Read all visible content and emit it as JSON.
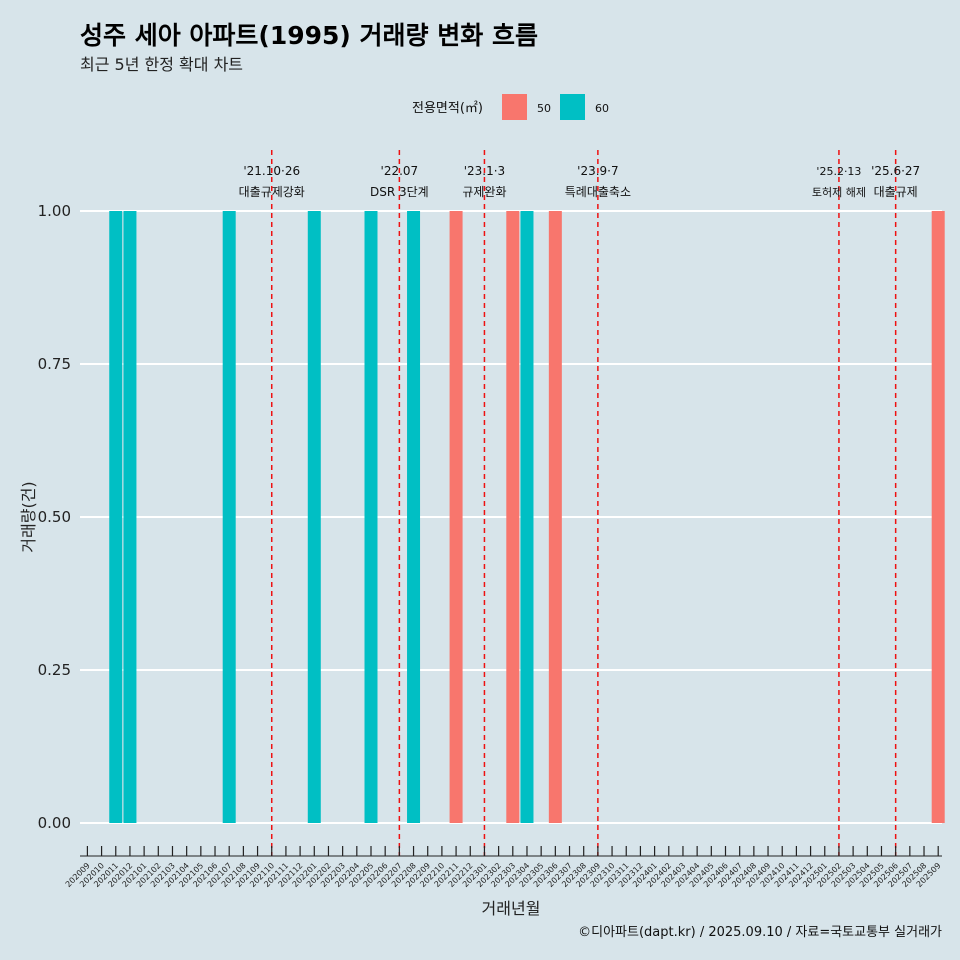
{
  "chart_data": {
    "type": "bar",
    "title": "성주 세아 아파트(1995) 거래량 변화 흐름",
    "subtitle": "최근 5년 한정 확대 차트",
    "xlabel": "거래년월",
    "ylabel": "거래량(건)",
    "ylim": [
      0,
      1
    ],
    "yticks": [
      "0.00",
      "0.25",
      "0.50",
      "0.75",
      "1.00"
    ],
    "grid": true,
    "legend": {
      "title": "전용면적(㎡)",
      "position": "top",
      "entries": [
        {
          "label": "50",
          "color": "#f8766d"
        },
        {
          "label": "60",
          "color": "#00bfc4"
        }
      ]
    },
    "categories": [
      "202009",
      "202010",
      "202011",
      "202012",
      "202101",
      "202102",
      "202103",
      "202104",
      "202105",
      "202106",
      "202107",
      "202108",
      "202109",
      "202110",
      "202111",
      "202112",
      "202201",
      "202202",
      "202203",
      "202204",
      "202205",
      "202206",
      "202207",
      "202208",
      "202209",
      "202210",
      "202211",
      "202212",
      "202301",
      "202302",
      "202303",
      "202304",
      "202305",
      "202306",
      "202307",
      "202308",
      "202309",
      "202310",
      "202311",
      "202312",
      "202401",
      "202402",
      "202403",
      "202404",
      "202405",
      "202406",
      "202407",
      "202408",
      "202409",
      "202410",
      "202411",
      "202412",
      "202501",
      "202502",
      "202503",
      "202504",
      "202505",
      "202506",
      "202507",
      "202508",
      "202509"
    ],
    "bars": [
      {
        "x": "202011",
        "area": "60",
        "value": 1
      },
      {
        "x": "202012",
        "area": "60",
        "value": 1
      },
      {
        "x": "202107",
        "area": "60",
        "value": 1
      },
      {
        "x": "202201",
        "area": "60",
        "value": 1
      },
      {
        "x": "202205",
        "area": "60",
        "value": 1
      },
      {
        "x": "202208",
        "area": "60",
        "value": 1
      },
      {
        "x": "202211",
        "area": "50",
        "value": 1
      },
      {
        "x": "202303",
        "area": "50",
        "value": 1
      },
      {
        "x": "202304",
        "area": "60",
        "value": 1
      },
      {
        "x": "202306",
        "area": "50",
        "value": 1
      }
    ],
    "events": [
      {
        "x": "202110",
        "date": "'21.10·26",
        "label": "대출규제강화"
      },
      {
        "x": "202207",
        "date": "'22.07",
        "label": "DSR 3단계"
      },
      {
        "x": "202301",
        "date": "'23.1·3",
        "label": "규제완화"
      },
      {
        "x": "202309",
        "date": "'23.9·7",
        "label": "특례대출축소"
      },
      {
        "x": "202502",
        "date": "'25.2·13",
        "label": "토허제 해제"
      },
      {
        "x": "202506",
        "date": "'25.6·27",
        "label": "대출규제"
      }
    ],
    "extra_bar": {
      "x": "202509",
      "area": "50",
      "value": 1
    },
    "caption": "©디아파트(dapt.kr) / 2025.09.10 / 자료=국토교통부 실거래가"
  }
}
